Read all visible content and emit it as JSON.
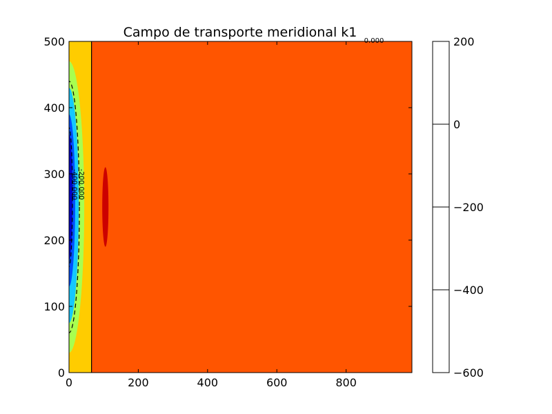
{
  "chart_data": {
    "type": "heatmap",
    "title": "Campo de transporte meridional k1",
    "xlabel": "",
    "ylabel": "",
    "xlim": [
      0,
      990
    ],
    "ylim": [
      0,
      500
    ],
    "x_ticks": [
      0,
      200,
      400,
      600,
      800
    ],
    "y_ticks": [
      0,
      100,
      200,
      300,
      400,
      500
    ],
    "grid": false,
    "colorbar": {
      "range": [
        -600,
        200
      ],
      "ticks": [
        200,
        0,
        -200,
        -400,
        -600
      ],
      "tick_labels": [
        "200",
        "0",
        "−200",
        "−400",
        "−600"
      ]
    },
    "filled_regions": [
      {
        "level": "background",
        "color": "#ff5500"
      },
      {
        "level": "western boundary band",
        "x_range": [
          0,
          65
        ],
        "y_range": [
          0,
          500
        ],
        "color": "#ffcc00"
      },
      {
        "level": "outer low",
        "center": [
          0,
          250
        ],
        "x_extent": 44,
        "y_range": [
          30,
          470
        ],
        "color": "#a8ff4f"
      },
      {
        "level": "mid low",
        "center": [
          0,
          255
        ],
        "x_extent": 28,
        "y_range": [
          75,
          430
        ],
        "color": "#15c8ff"
      },
      {
        "level": "inner low",
        "center": [
          0,
          265
        ],
        "x_extent": 18,
        "y_range": [
          130,
          390
        ],
        "color": "#0050ff"
      },
      {
        "level": "core",
        "center": [
          0,
          265
        ],
        "x_extent": 10,
        "y_range": [
          170,
          360
        ],
        "color": "#0000c8"
      },
      {
        "level": "local high",
        "center": [
          105,
          250
        ],
        "x_extent": 9,
        "y_range": [
          190,
          310
        ],
        "color": "#cc0000"
      }
    ],
    "contour_lines": [
      {
        "value": -400,
        "label": "-400.000",
        "style": "dashed",
        "x_extent": 10,
        "y_range": [
          160,
          370
        ]
      },
      {
        "value": -200,
        "label": "-200.000",
        "style": "dashed",
        "x_extent": 30,
        "y_range": [
          60,
          440
        ]
      },
      {
        "value": 0,
        "label": "0.000",
        "style": "solid",
        "x": 65,
        "y_range": [
          0,
          500
        ]
      }
    ]
  }
}
